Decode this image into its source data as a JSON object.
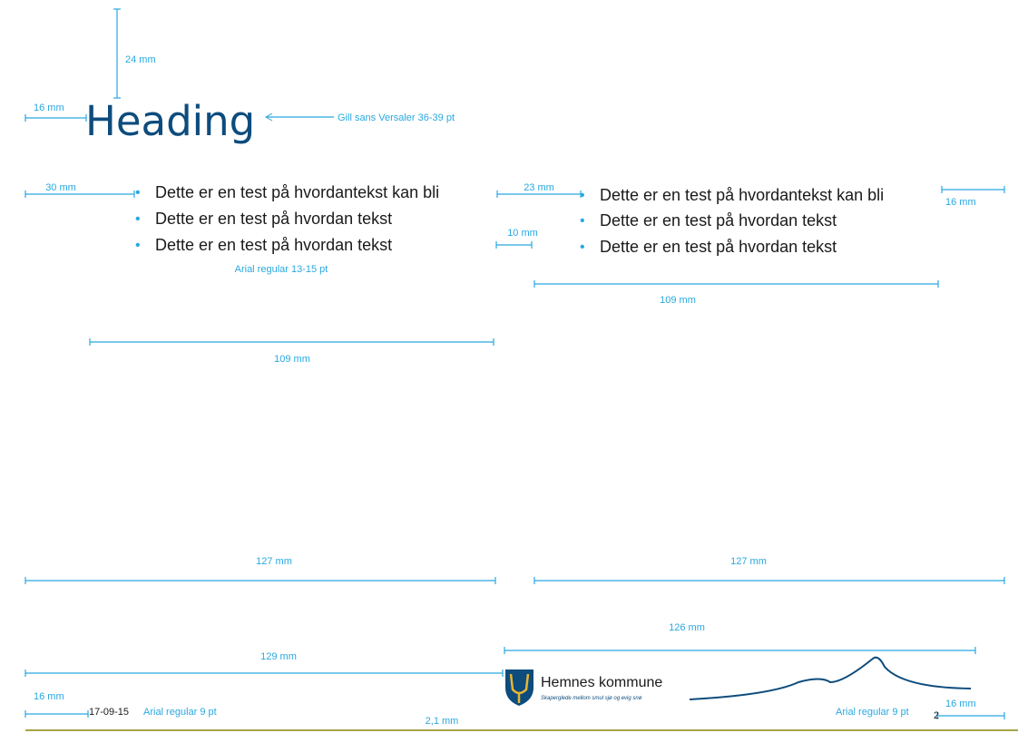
{
  "heading": {
    "text": "Heading",
    "font_note": "Gill sans Versaler 36-39 pt",
    "margin_top": "24 mm",
    "margin_left": "16 mm"
  },
  "left_column": {
    "indent": "30 mm",
    "bullets": [
      "Dette er en test på hvordantekst kan bli",
      "Dette er en test på hvordan tekst",
      "Dette er en test på hvordan tekst"
    ],
    "font_note": "Arial regular 13-15 pt",
    "width": "109 mm"
  },
  "right_column": {
    "gap": "23 mm",
    "bullet_gap": "10 mm",
    "bullets": [
      "Dette er en test på hvordantekst kan bli",
      "Dette er en test på hvordan tekst",
      "Dette er en test på hvordan tekst"
    ],
    "margin_right": "16 mm",
    "width": "109 mm"
  },
  "guides": {
    "left_width": "127 mm",
    "right_width": "127 mm",
    "logo_width": "126 mm",
    "footer_left_width": "129 mm"
  },
  "footer": {
    "logo_name": "Hemnes kommune",
    "logo_tagline": "Skaperglede mellom smul sjø og evig snø",
    "margin_left": "16 mm",
    "date": "17-09-15",
    "left_font_note": "Arial regular 9 pt",
    "line_weight": "2,1 mm",
    "right_font_note": "Arial regular 9 pt",
    "page_number": "2",
    "margin_right": "16 mm"
  }
}
